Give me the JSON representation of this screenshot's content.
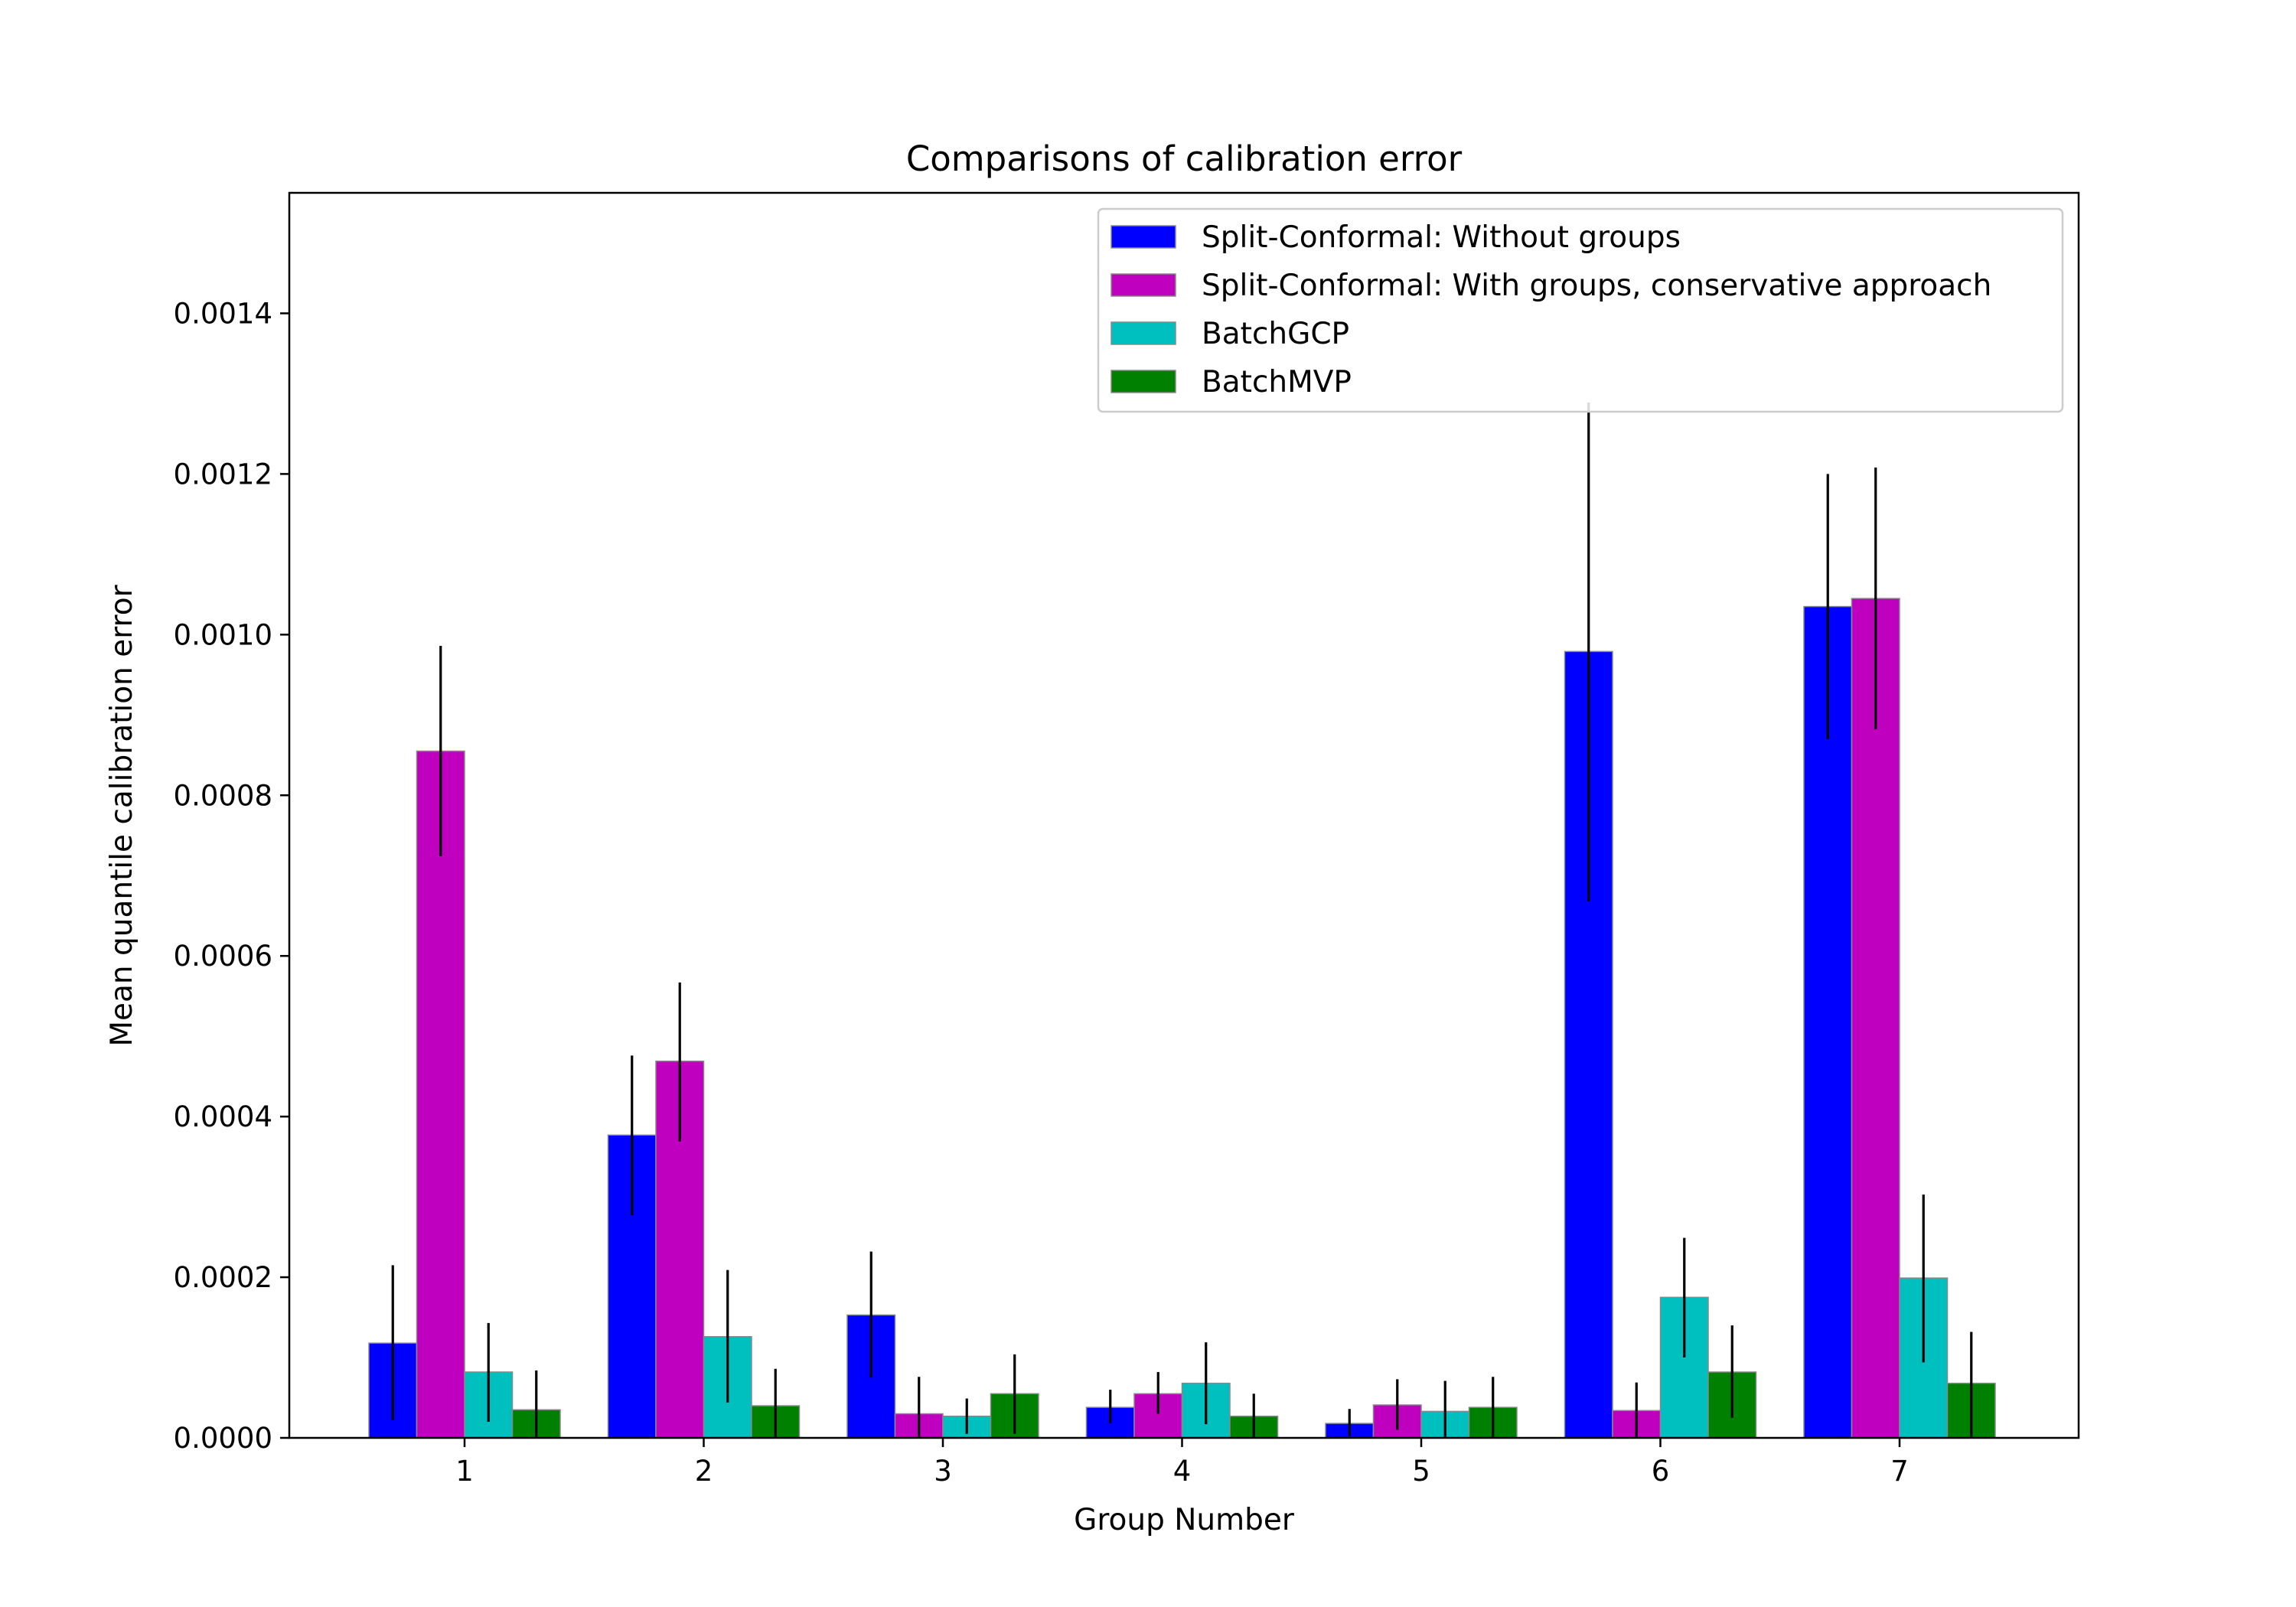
{
  "chart_data": {
    "type": "bar",
    "title": "Comparisons of calibration error",
    "xlabel": "Group Number",
    "ylabel": "Mean quantile calibration error",
    "ylim": [
      0,
      0.00155
    ],
    "yticks": [
      0.0,
      0.0002,
      0.0004,
      0.0006,
      0.0008,
      0.001,
      0.0012,
      0.0014
    ],
    "ytick_labels": [
      "0.0000",
      "0.0002",
      "0.0004",
      "0.0006",
      "0.0008",
      "0.0010",
      "0.0012",
      "0.0014"
    ],
    "categories": [
      "1",
      "2",
      "3",
      "4",
      "5",
      "6",
      "7"
    ],
    "legend_position": "top-right",
    "grid": false,
    "series": [
      {
        "name": "Split-Conformal: Without groups",
        "color": "#0000ff",
        "values": [
          0.000118,
          0.000377,
          0.000153,
          3.8e-05,
          1.8e-05,
          0.000979,
          0.001035
        ],
        "err_low": [
          2.2e-05,
          0.000277,
          7.5e-05,
          1.8e-05,
          2e-06,
          0.000668,
          0.00087
        ],
        "err_high": [
          0.000215,
          0.000476,
          0.000232,
          6e-05,
          3.6e-05,
          0.001289,
          0.0012
        ]
      },
      {
        "name": "Split-Conformal: With groups, conservative approach",
        "color": "#bf00bf",
        "values": [
          0.000855,
          0.000469,
          3e-05,
          5.5e-05,
          4.1e-05,
          3.4e-05,
          0.001045
        ],
        "err_low": [
          0.000724,
          0.000369,
          0.0,
          3e-05,
          1e-05,
          0.0,
          0.000882
        ],
        "err_high": [
          0.000986,
          0.000567,
          7.6e-05,
          8.2e-05,
          7.3e-05,
          6.9e-05,
          0.001208
        ]
      },
      {
        "name": "BatchGCP",
        "color": "#00bfbf",
        "values": [
          8.2e-05,
          0.000126,
          2.7e-05,
          6.8e-05,
          3.3e-05,
          0.000175,
          0.000199
        ],
        "err_low": [
          2e-05,
          4.4e-05,
          5e-06,
          1.7e-05,
          0.0,
          0.0001,
          9.4e-05
        ],
        "err_high": [
          0.000143,
          0.000209,
          4.9e-05,
          0.000119,
          7.1e-05,
          0.000249,
          0.000303
        ]
      },
      {
        "name": "BatchMVP",
        "color": "#008000",
        "values": [
          3.5e-05,
          4e-05,
          5.5e-05,
          2.7e-05,
          3.8e-05,
          8.2e-05,
          6.8e-05
        ],
        "err_low": [
          0.0,
          0.0,
          5e-06,
          0.0,
          0.0,
          2.5e-05,
          0.0
        ],
        "err_high": [
          8.4e-05,
          8.6e-05,
          0.000104,
          5.5e-05,
          7.6e-05,
          0.00014,
          0.000132
        ]
      }
    ]
  }
}
